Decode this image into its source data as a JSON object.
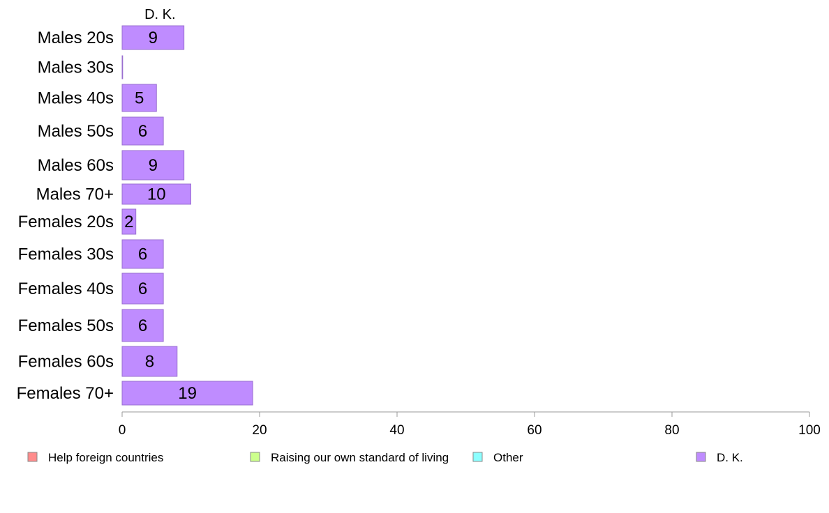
{
  "chart_data": {
    "type": "bar",
    "orientation": "horizontal",
    "series_title": "D. K.",
    "categories": [
      "Males 20s",
      "Males 30s",
      "Males 40s",
      "Males 50s",
      "Males 60s",
      "Males 70+",
      "Females 20s",
      "Females 30s",
      "Females 40s",
      "Females 50s",
      "Females 60s",
      "Females 70+"
    ],
    "series": [
      {
        "name": "D. K.",
        "color": "#bf8cff",
        "stroke": "#9a6fd0",
        "values": [
          9,
          0,
          5,
          6,
          9,
          10,
          2,
          6,
          6,
          6,
          8,
          19
        ],
        "labels": [
          "9",
          "",
          "5",
          "6",
          "9",
          "10",
          "2",
          "6",
          "6",
          "6",
          "8",
          "19"
        ]
      }
    ],
    "xlim": [
      0,
      100
    ],
    "xticks": [
      0,
      20,
      40,
      60,
      80,
      100
    ],
    "grid": false,
    "legend": {
      "placement": "bottom",
      "entries": [
        {
          "label": "Help foreign countries",
          "color": "#ff8c8c"
        },
        {
          "label": "Raising our own standard of living",
          "color": "#ccff8c"
        },
        {
          "label": "Other",
          "color": "#8cffff"
        },
        {
          "label": "D. K.",
          "color": "#bf8cff"
        }
      ]
    }
  }
}
